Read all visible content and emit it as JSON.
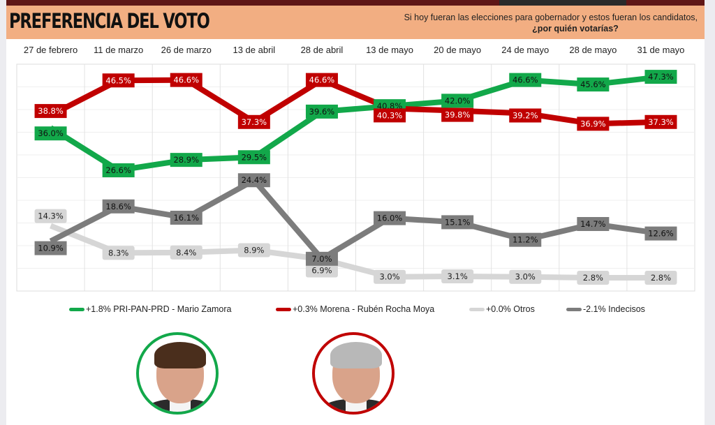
{
  "header": {
    "title": "PREFERENCIA DEL VOTO",
    "question_line1": "Si hoy fueran las elecciones para gobernador y estos fueran los candidatos,",
    "question_line2": "¿por quién votarías?"
  },
  "colors": {
    "green": "#12a84a",
    "red": "#c00000",
    "light_grey": "#d6d6d6",
    "dark_grey": "#7c7c7c",
    "header_bg": "#f2ae82",
    "topbar": "#5f1616"
  },
  "chart_data": {
    "type": "line",
    "title": "PREFERENCIA DEL VOTO",
    "xlabel": "",
    "ylabel": "",
    "ylim": [
      0,
      50
    ],
    "grid": true,
    "legend_position": "bottom",
    "categories": [
      "27 de febrero",
      "11 de marzo",
      "26 de marzo",
      "13 de abril",
      "28 de abril",
      "13 de mayo",
      "20 de mayo",
      "24 de mayo",
      "28 de mayo",
      "31 de mayo"
    ],
    "series": [
      {
        "name": "PRI-PAN-PRD - Mario Zamora",
        "legend": "+1.8% PRI-PAN-PRD - Mario Zamora",
        "color": "#12a84a",
        "text_color": "#111111",
        "values": [
          36.0,
          26.6,
          28.9,
          29.5,
          39.6,
          40.8,
          42.0,
          46.6,
          45.6,
          47.3
        ],
        "labels": [
          "36.0%",
          "26.6%",
          "28.9%",
          "29.5%",
          "39.6%",
          "40.8%",
          "42.0%",
          "46.6%",
          "45.6%",
          "47.3%"
        ]
      },
      {
        "name": "Morena - Rubén Rocha Moya",
        "legend": "+0.3% Morena - Rubén Rocha Moya",
        "color": "#c00000",
        "text_color": "#ffffff",
        "values": [
          38.8,
          46.5,
          46.6,
          37.3,
          46.6,
          40.3,
          39.8,
          39.2,
          36.9,
          37.3
        ],
        "labels": [
          "38.8%",
          "46.5%",
          "46.6%",
          "37.3%",
          "46.6%",
          "40.3%",
          "39.8%",
          "39.2%",
          "36.9%",
          "37.3%"
        ]
      },
      {
        "name": "Otros",
        "legend": "+0.0% Otros",
        "color": "#d6d6d6",
        "text_color": "#222222",
        "values": [
          14.3,
          8.3,
          8.4,
          8.9,
          6.9,
          3.0,
          3.1,
          3.0,
          2.8,
          2.8
        ],
        "labels": [
          "14.3%",
          "8.3%",
          "8.4%",
          "8.9%",
          "6.9%",
          "3.0%",
          "3.1%",
          "3.0%",
          "2.8%",
          "2.8%"
        ]
      },
      {
        "name": "Indecisos",
        "legend": "-2.1% Indecisos",
        "color": "#7c7c7c",
        "text_color": "#111111",
        "values": [
          10.9,
          18.6,
          16.1,
          24.4,
          7.0,
          16.0,
          15.1,
          11.2,
          14.7,
          12.6
        ],
        "labels": [
          "10.9%",
          "18.6%",
          "16.1%",
          "24.4%",
          "7.0%",
          "16.0%",
          "15.1%",
          "11.2%",
          "14.7%",
          "12.6%"
        ]
      }
    ]
  },
  "candidates": [
    {
      "name": "Mario Zamora",
      "ring_color": "#12a84a",
      "hair_color": "#4a2e1c"
    },
    {
      "name": "Rubén Rocha Moya",
      "ring_color": "#c00000",
      "hair_color": "#b8b8b8"
    }
  ]
}
